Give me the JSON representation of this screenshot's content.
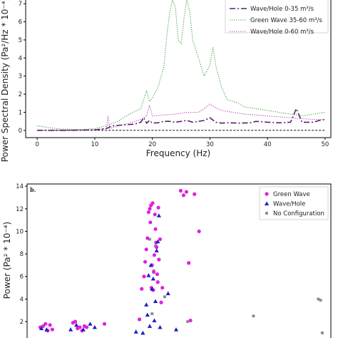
{
  "chart_data": [
    {
      "type": "line",
      "xlabel": "Frequency (Hz)",
      "ylabel": "Power Spectral Density (Pa²/Hz * 10⁻⁴)",
      "xlim": [
        -2,
        51
      ],
      "ylim": [
        -0.4,
        7.6
      ],
      "xticks": [
        0,
        10,
        20,
        30,
        40,
        50
      ],
      "yticks": [
        0,
        1,
        2,
        3,
        4,
        5,
        6,
        7
      ],
      "legend_loc": "top-right",
      "series": [
        {
          "name": "Wave/Hole 0-35 m³/s",
          "color": "#5b1f6b",
          "style": "dashdot",
          "x": [
            0,
            5,
            10,
            12,
            13,
            15,
            17,
            18,
            18.5,
            19,
            19.5,
            20,
            21,
            22,
            23,
            24,
            25,
            26,
            27,
            28,
            29,
            30,
            31,
            32,
            33,
            35,
            37,
            38,
            40,
            42,
            44,
            45,
            46,
            48,
            49,
            50
          ],
          "y": [
            0.0,
            0.0,
            0.03,
            0.1,
            0.25,
            0.3,
            0.35,
            0.45,
            0.7,
            0.4,
            0.55,
            0.4,
            0.42,
            0.5,
            0.5,
            0.45,
            0.5,
            0.55,
            0.45,
            0.5,
            0.55,
            0.7,
            0.45,
            0.4,
            0.42,
            0.4,
            0.42,
            0.5,
            0.45,
            0.42,
            0.45,
            1.2,
            0.45,
            0.45,
            0.55,
            0.6
          ]
        },
        {
          "name": "Green Wave 35-60 m³/s",
          "color": "#3f9f3f",
          "style": "dotted",
          "x": [
            0,
            2,
            4,
            6,
            8,
            10,
            12,
            14,
            16,
            18,
            19,
            19.5,
            20,
            21,
            22,
            22.5,
            23,
            23.5,
            24,
            24.5,
            25,
            25.5,
            26,
            26.5,
            27,
            28,
            29,
            30,
            30.5,
            31,
            32,
            33,
            34,
            35,
            36,
            38,
            40,
            42,
            44,
            46,
            48,
            50
          ],
          "y": [
            0.25,
            0.15,
            0.08,
            0.05,
            0.05,
            0.1,
            0.25,
            0.5,
            0.9,
            1.2,
            2.2,
            1.6,
            1.8,
            2.4,
            3.5,
            5.2,
            6.5,
            7.2,
            6.8,
            5.0,
            4.8,
            6.2,
            7.3,
            6.5,
            5.0,
            4.0,
            3.0,
            3.6,
            4.6,
            3.6,
            2.4,
            1.7,
            1.6,
            1.5,
            1.3,
            1.2,
            1.1,
            1.0,
            0.9,
            0.8,
            0.9,
            1.0
          ]
        },
        {
          "name": "Wave/Hole 0-60 m³/s",
          "color": "#b040b0",
          "style": "dotted",
          "x": [
            0,
            10,
            12,
            12.3,
            12.6,
            14,
            16,
            18,
            19,
            19.5,
            20,
            22,
            24,
            26,
            28,
            29,
            30,
            31,
            32,
            34,
            36,
            38,
            40,
            42,
            44,
            46,
            48,
            50
          ],
          "y": [
            0.02,
            0.03,
            0.1,
            0.8,
            0.1,
            0.25,
            0.4,
            0.6,
            0.8,
            1.4,
            0.8,
            0.85,
            0.9,
            1.0,
            1.0,
            1.2,
            1.45,
            1.25,
            1.1,
            1.0,
            0.9,
            0.85,
            0.8,
            0.75,
            0.7,
            0.65,
            0.6,
            0.6
          ]
        },
        {
          "name": "",
          "color": "#111111",
          "style": "dashed",
          "x": [
            0,
            50
          ],
          "y": [
            0.0,
            0.0
          ]
        }
      ]
    },
    {
      "type": "scatter",
      "panel_label": "b.",
      "ylabel": "Power (Pa² * 10⁻⁴)",
      "xlim": [
        -2,
        51
      ],
      "ylim": [
        0.8,
        14.2
      ],
      "yticks": [
        2,
        4,
        6,
        8,
        10,
        12,
        14
      ],
      "legend_loc": "top-right",
      "series": [
        {
          "name": "Green Wave",
          "color": "#e020e0",
          "marker": "circle",
          "points": [
            [
              0.3,
              1.5
            ],
            [
              0.8,
              1.6
            ],
            [
              1.2,
              1.8
            ],
            [
              1.6,
              1.2
            ],
            [
              2.0,
              1.7
            ],
            [
              2.4,
              1.3
            ],
            [
              6.0,
              1.9
            ],
            [
              6.4,
              2.0
            ],
            [
              6.8,
              1.4
            ],
            [
              7.2,
              1.5
            ],
            [
              7.6,
              1.2
            ],
            [
              8.0,
              1.6
            ],
            [
              8.4,
              1.5
            ],
            [
              11.5,
              1.8
            ],
            [
              17.6,
              2.2
            ],
            [
              18.0,
              4.9
            ],
            [
              18.4,
              6.0
            ],
            [
              18.6,
              7.3
            ],
            [
              18.8,
              8.4
            ],
            [
              19.0,
              9.4
            ],
            [
              19.2,
              11.7
            ],
            [
              19.4,
              12.0
            ],
            [
              19.5,
              10.8
            ],
            [
              19.6,
              12.3
            ],
            [
              19.7,
              5.0
            ],
            [
              19.8,
              7.0
            ],
            [
              19.9,
              12.5
            ],
            [
              20.0,
              4.8
            ],
            [
              20.1,
              6.4
            ],
            [
              20.2,
              7.9
            ],
            [
              20.3,
              11.5
            ],
            [
              20.4,
              10.2
            ],
            [
              20.5,
              9.0
            ],
            [
              20.6,
              8.6
            ],
            [
              20.7,
              6.2
            ],
            [
              20.8,
              5.5
            ],
            [
              20.9,
              12.1
            ],
            [
              21.0,
              7.5
            ],
            [
              21.2,
              9.3
            ],
            [
              21.4,
              3.7
            ],
            [
              21.6,
              5.0
            ],
            [
              24.8,
              13.6
            ],
            [
              25.3,
              13.2
            ],
            [
              25.8,
              13.5
            ],
            [
              26.2,
              7.2
            ],
            [
              26.5,
              2.1
            ],
            [
              27.2,
              13.3
            ],
            [
              28.0,
              10.0
            ]
          ]
        },
        {
          "name": "Wave/Hole",
          "color": "#2020c0",
          "marker": "triangle",
          "points": [
            [
              0.5,
              1.4
            ],
            [
              1.4,
              1.3
            ],
            [
              5.6,
              1.3
            ],
            [
              6.6,
              1.7
            ],
            [
              7.8,
              1.3
            ],
            [
              9.0,
              1.8
            ],
            [
              9.8,
              1.5
            ],
            [
              17.0,
              1.1
            ],
            [
              18.2,
              1.0
            ],
            [
              18.8,
              3.5
            ],
            [
              19.0,
              2.6
            ],
            [
              19.2,
              6.1
            ],
            [
              19.4,
              1.6
            ],
            [
              19.6,
              7.0
            ],
            [
              19.8,
              4.9
            ],
            [
              20.0,
              5.8
            ],
            [
              20.2,
              2.1
            ],
            [
              20.4,
              3.8
            ],
            [
              20.6,
              8.3
            ],
            [
              20.8,
              9.1
            ],
            [
              21.0,
              11.4
            ],
            [
              21.2,
              1.5
            ],
            [
              22.6,
              4.5
            ],
            [
              24.0,
              1.3
            ]
          ]
        },
        {
          "name": "No Configuration",
          "color": "#888888",
          "marker": "square",
          "points": [
            [
              19.4,
              9.3
            ],
            [
              19.8,
              2.7
            ],
            [
              20.1,
              6.5
            ],
            [
              20.4,
              8.7
            ],
            [
              22.0,
              4.2
            ],
            [
              26.0,
              2.0
            ],
            [
              37.5,
              2.5
            ],
            [
              48.8,
              4.0
            ],
            [
              49.2,
              3.9
            ],
            [
              49.5,
              1.0
            ]
          ]
        }
      ]
    }
  ]
}
